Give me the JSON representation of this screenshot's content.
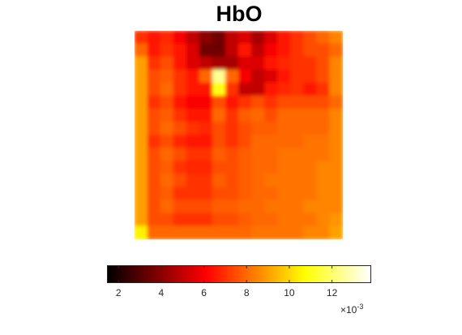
{
  "chart_data": {
    "type": "heatmap",
    "title": "HbO",
    "colormap": "hot",
    "colorbar": {
      "orientation": "horizontal",
      "location": "below",
      "range": [
        1.5,
        13.8
      ],
      "ticks": [
        2,
        4,
        6,
        8,
        10,
        12
      ],
      "tick_labels": [
        "2",
        "4",
        "6",
        "8",
        "10",
        "12"
      ],
      "multiplier_label": "×10",
      "multiplier_exponent": "-3"
    },
    "grid": false,
    "values": [
      [
        7.0,
        6.5,
        6.8,
        6.0,
        5.0,
        4.0,
        3.5,
        5.0,
        5.5,
        4.5,
        5.5,
        6.5,
        7.0,
        7.5,
        8.0,
        8.5
      ],
      [
        8.0,
        6.5,
        7.0,
        6.5,
        5.5,
        3.5,
        3.5,
        5.0,
        6.5,
        5.0,
        6.0,
        6.5,
        7.0,
        7.5,
        7.5,
        8.0
      ],
      [
        9.0,
        7.0,
        7.5,
        6.5,
        5.5,
        5.0,
        4.5,
        4.5,
        5.5,
        5.5,
        6.5,
        6.8,
        7.0,
        7.0,
        7.5,
        8.5
      ],
      [
        9.0,
        7.5,
        7.8,
        7.0,
        6.5,
        8.0,
        12.5,
        8.0,
        6.0,
        5.0,
        5.5,
        6.5,
        7.0,
        7.0,
        7.5,
        8.5
      ],
      [
        9.0,
        7.5,
        8.0,
        7.0,
        6.5,
        6.5,
        11.0,
        7.0,
        5.0,
        5.0,
        6.5,
        6.8,
        7.0,
        6.5,
        7.0,
        8.5
      ],
      [
        9.0,
        7.0,
        7.5,
        6.5,
        6.0,
        6.0,
        7.5,
        6.5,
        7.0,
        7.5,
        7.0,
        7.5,
        7.5,
        7.5,
        7.5,
        8.0
      ],
      [
        9.0,
        7.5,
        7.8,
        7.0,
        6.5,
        6.5,
        8.0,
        7.0,
        7.8,
        8.0,
        7.5,
        8.0,
        8.0,
        8.0,
        8.0,
        8.5
      ],
      [
        9.0,
        7.5,
        8.0,
        7.5,
        7.0,
        6.8,
        7.5,
        7.0,
        7.5,
        7.8,
        7.8,
        8.0,
        8.0,
        8.0,
        8.0,
        8.5
      ],
      [
        9.0,
        7.0,
        7.5,
        6.8,
        6.5,
        6.5,
        7.5,
        7.0,
        7.5,
        8.0,
        8.0,
        8.0,
        8.0,
        8.2,
        8.2,
        8.5
      ],
      [
        9.0,
        7.5,
        8.0,
        7.5,
        7.0,
        7.0,
        7.8,
        7.5,
        7.8,
        8.0,
        8.0,
        8.2,
        8.2,
        8.2,
        8.2,
        8.5
      ],
      [
        9.0,
        7.5,
        7.8,
        7.0,
        6.8,
        6.8,
        7.5,
        7.5,
        7.8,
        8.0,
        8.0,
        8.2,
        8.2,
        8.2,
        8.5,
        8.5
      ],
      [
        9.0,
        7.5,
        8.0,
        7.5,
        7.0,
        7.0,
        7.8,
        7.5,
        7.8,
        8.0,
        8.2,
        8.2,
        8.2,
        8.2,
        8.5,
        8.5
      ],
      [
        9.0,
        7.5,
        7.8,
        7.0,
        7.0,
        7.0,
        7.5,
        7.5,
        7.8,
        8.0,
        8.0,
        8.2,
        8.2,
        8.2,
        8.5,
        8.5
      ],
      [
        9.0,
        7.5,
        8.0,
        7.5,
        7.5,
        7.5,
        7.8,
        7.8,
        8.0,
        8.0,
        8.2,
        8.2,
        8.2,
        8.5,
        8.5,
        8.5
      ],
      [
        9.0,
        7.5,
        7.5,
        7.0,
        7.0,
        7.0,
        7.5,
        7.5,
        7.8,
        8.0,
        8.0,
        8.2,
        8.2,
        8.2,
        8.5,
        8.8
      ],
      [
        10.5,
        8.0,
        8.0,
        8.0,
        8.0,
        8.0,
        8.0,
        8.0,
        8.0,
        8.2,
        8.2,
        8.2,
        8.2,
        8.5,
        8.5,
        9.0
      ]
    ]
  }
}
